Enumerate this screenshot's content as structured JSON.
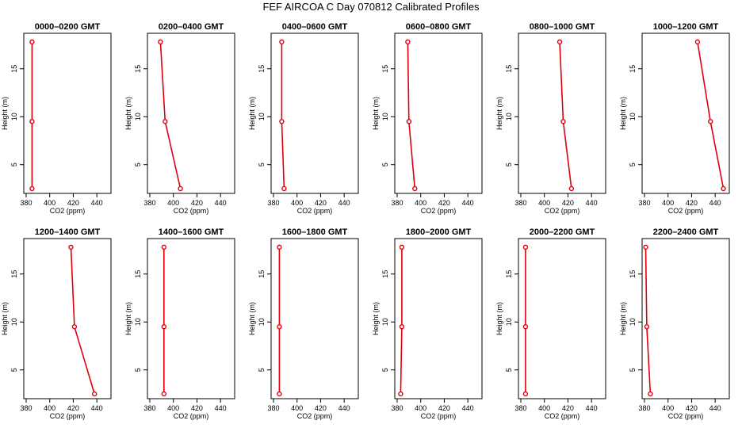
{
  "page_title": "FEF AIRCOA C  Day 070812  Calibrated Profiles",
  "colors": {
    "profile_line": "#e0000d",
    "axis": "#000000",
    "background": "#ffffff"
  },
  "chart_data": [
    {
      "type": "line",
      "title": "0000–0200 GMT",
      "xlabel": "CO2 (ppm)",
      "ylabel": "Height (m)",
      "xlim": [
        378,
        452
      ],
      "ylim": [
        2.0,
        18.7
      ],
      "xticks": [
        380,
        400,
        420,
        440
      ],
      "yticks": [
        5,
        10,
        15
      ],
      "grid": false,
      "x": [
        385,
        385,
        385
      ],
      "y": [
        2.5,
        9.5,
        17.8
      ]
    },
    {
      "type": "line",
      "title": "0200–0400 GMT",
      "xlabel": "CO2 (ppm)",
      "ylabel": "Height (m)",
      "xlim": [
        378,
        452
      ],
      "ylim": [
        2.0,
        18.7
      ],
      "xticks": [
        380,
        400,
        420,
        440
      ],
      "yticks": [
        5,
        10,
        15
      ],
      "grid": false,
      "x": [
        406,
        393,
        389
      ],
      "y": [
        2.5,
        9.5,
        17.8
      ]
    },
    {
      "type": "line",
      "title": "0400–0600 GMT",
      "xlabel": "CO2 (ppm)",
      "ylabel": "Height (m)",
      "xlim": [
        378,
        452
      ],
      "ylim": [
        2.0,
        18.7
      ],
      "xticks": [
        380,
        400,
        420,
        440
      ],
      "yticks": [
        5,
        10,
        15
      ],
      "grid": false,
      "x": [
        389,
        387,
        387
      ],
      "y": [
        2.5,
        9.5,
        17.8
      ]
    },
    {
      "type": "line",
      "title": "0600–0800 GMT",
      "xlabel": "CO2 (ppm)",
      "ylabel": "Height (m)",
      "xlim": [
        378,
        452
      ],
      "ylim": [
        2.0,
        18.7
      ],
      "xticks": [
        380,
        400,
        420,
        440
      ],
      "yticks": [
        5,
        10,
        15
      ],
      "grid": false,
      "x": [
        395,
        390,
        389
      ],
      "y": [
        2.5,
        9.5,
        17.8
      ]
    },
    {
      "type": "line",
      "title": "0800–1000 GMT",
      "xlabel": "CO2 (ppm)",
      "ylabel": "Height (m)",
      "xlim": [
        378,
        452
      ],
      "ylim": [
        2.0,
        18.7
      ],
      "xticks": [
        380,
        400,
        420,
        440
      ],
      "yticks": [
        5,
        10,
        15
      ],
      "grid": false,
      "x": [
        423,
        416,
        413
      ],
      "y": [
        2.5,
        9.5,
        17.8
      ]
    },
    {
      "type": "line",
      "title": "1000–1200 GMT",
      "xlabel": "CO2 (ppm)",
      "ylabel": "Height (m)",
      "xlim": [
        378,
        452
      ],
      "ylim": [
        2.0,
        18.7
      ],
      "xticks": [
        380,
        400,
        420,
        440
      ],
      "yticks": [
        5,
        10,
        15
      ],
      "grid": false,
      "x": [
        447,
        436,
        425
      ],
      "y": [
        2.5,
        9.5,
        17.8
      ]
    },
    {
      "type": "line",
      "title": "1200–1400 GMT",
      "xlabel": "CO2 (ppm)",
      "ylabel": "Height (m)",
      "xlim": [
        378,
        452
      ],
      "ylim": [
        2.0,
        18.7
      ],
      "xticks": [
        380,
        400,
        420,
        440
      ],
      "yticks": [
        5,
        10,
        15
      ],
      "grid": false,
      "x": [
        438,
        421,
        418
      ],
      "y": [
        2.5,
        9.5,
        17.8
      ]
    },
    {
      "type": "line",
      "title": "1400–1600 GMT",
      "xlabel": "CO2 (ppm)",
      "ylabel": "Height (m)",
      "xlim": [
        378,
        452
      ],
      "ylim": [
        2.0,
        18.7
      ],
      "xticks": [
        380,
        400,
        420,
        440
      ],
      "yticks": [
        5,
        10,
        15
      ],
      "grid": false,
      "x": [
        392,
        392,
        392
      ],
      "y": [
        2.5,
        9.5,
        17.8
      ]
    },
    {
      "type": "line",
      "title": "1600–1800 GMT",
      "xlabel": "CO2 (ppm)",
      "ylabel": "Height (m)",
      "xlim": [
        378,
        452
      ],
      "ylim": [
        2.0,
        18.7
      ],
      "xticks": [
        380,
        400,
        420,
        440
      ],
      "yticks": [
        5,
        10,
        15
      ],
      "grid": false,
      "x": [
        385,
        385,
        385
      ],
      "y": [
        2.5,
        9.5,
        17.8
      ]
    },
    {
      "type": "line",
      "title": "1800–2000 GMT",
      "xlabel": "CO2 (ppm)",
      "ylabel": "Height (m)",
      "xlim": [
        378,
        452
      ],
      "ylim": [
        2.0,
        18.7
      ],
      "xticks": [
        380,
        400,
        420,
        440
      ],
      "yticks": [
        5,
        10,
        15
      ],
      "grid": false,
      "x": [
        383,
        384,
        384
      ],
      "y": [
        2.5,
        9.5,
        17.8
      ]
    },
    {
      "type": "line",
      "title": "2000–2200 GMT",
      "xlabel": "CO2 (ppm)",
      "ylabel": "Height (m)",
      "xlim": [
        378,
        452
      ],
      "ylim": [
        2.0,
        18.7
      ],
      "xticks": [
        380,
        400,
        420,
        440
      ],
      "yticks": [
        5,
        10,
        15
      ],
      "grid": false,
      "x": [
        384,
        384,
        384
      ],
      "y": [
        2.5,
        9.5,
        17.8
      ]
    },
    {
      "type": "line",
      "title": "2200–2400 GMT",
      "xlabel": "CO2 (ppm)",
      "ylabel": "Height (m)",
      "xlim": [
        378,
        452
      ],
      "ylim": [
        2.0,
        18.7
      ],
      "xticks": [
        380,
        400,
        420,
        440
      ],
      "yticks": [
        5,
        10,
        15
      ],
      "grid": false,
      "x": [
        385,
        382,
        381
      ],
      "y": [
        2.5,
        9.5,
        17.8
      ]
    }
  ]
}
